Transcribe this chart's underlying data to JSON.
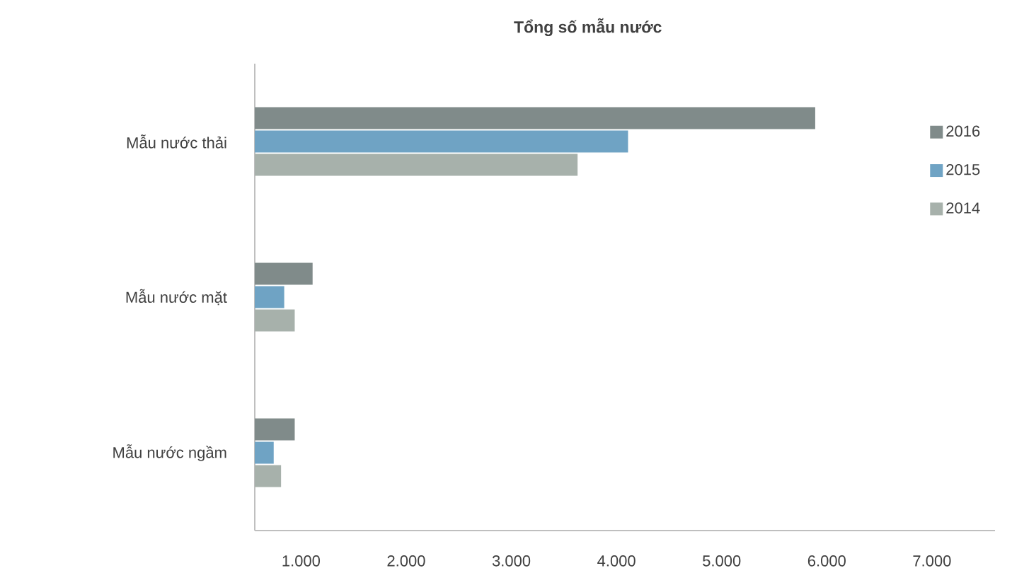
{
  "chart_data": {
    "type": "bar",
    "orientation": "horizontal",
    "title": "**Tổng số mẫu nước**",
    "categories": [
      "Mẫu nước thải",
      "Mẫu nước mặt",
      "Mẫu nước ngầm"
    ],
    "series": [
      {
        "name": "2016",
        "color": "#808b8a",
        "values": [
          5890,
          1110,
          940
        ]
      },
      {
        "name": "2015",
        "color": "#6fa3c4",
        "values": [
          4110,
          840,
          740
        ]
      },
      {
        "name": "2014",
        "color": "#a7b1ab",
        "values": [
          3630,
          940,
          810
        ]
      }
    ],
    "xlim": [
      560,
      7600
    ],
    "xticks": [
      {
        "value": 1000,
        "label": "1.000"
      },
      {
        "value": 2000,
        "label": "2.000"
      },
      {
        "value": 3000,
        "label": "3.000"
      },
      {
        "value": 4000,
        "label": "4.000"
      },
      {
        "value": 5000,
        "label": "5.000"
      },
      {
        "value": 6000,
        "label": "6.000"
      },
      {
        "value": 7000,
        "label": "7.000"
      }
    ],
    "grid": false,
    "legend": "top right"
  }
}
